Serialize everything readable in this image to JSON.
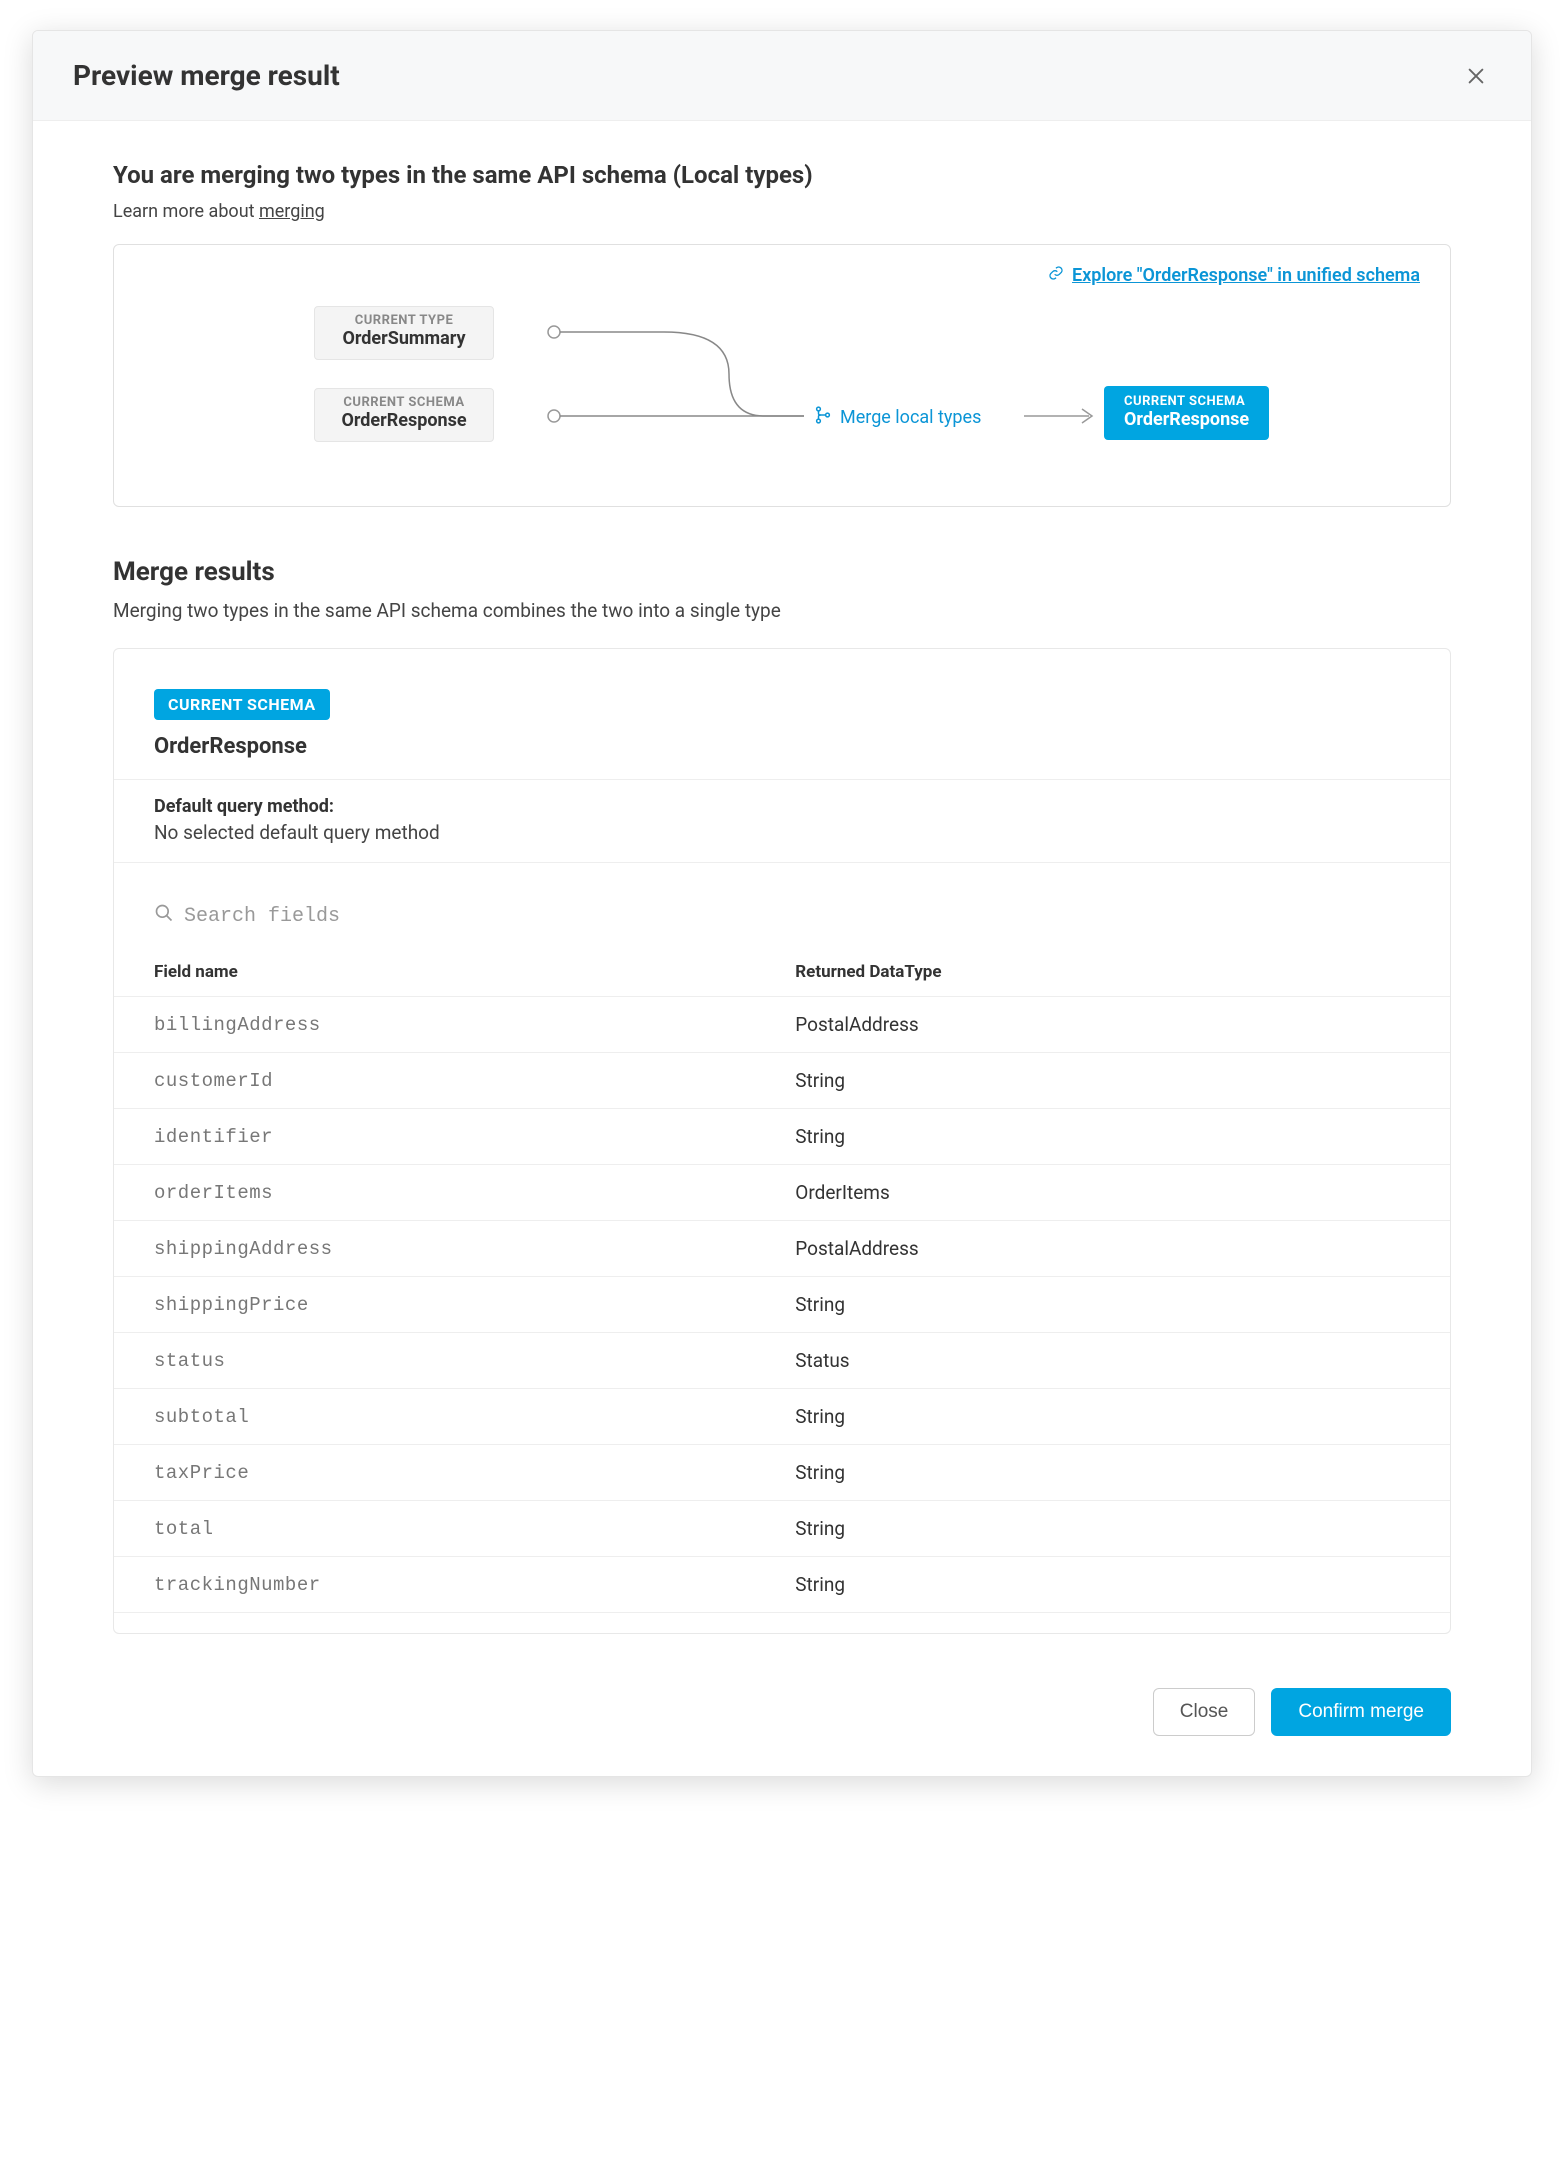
{
  "colors": {
    "accent": "#00a5e1",
    "link": "#0b95d6",
    "text": "#333333",
    "muted": "#888888",
    "border": "#e5e5e5",
    "background": "#ffffff",
    "header_bg": "#f7f8f9"
  },
  "modal": {
    "title": "Preview merge result",
    "close_label": "Close dialog"
  },
  "intro": {
    "heading": "You are merging two types in the same API schema (Local types)",
    "learn_prefix": "Learn more about ",
    "learn_link_text": "merging"
  },
  "diagram": {
    "explore_link": "Explore \"OrderResponse\" in unified schema",
    "source1": {
      "label": "CURRENT TYPE",
      "value": "OrderSummary"
    },
    "source2": {
      "label": "CURRENT SCHEMA",
      "value": "OrderResponse"
    },
    "merge_label": "Merge local types",
    "dest": {
      "label": "CURRENT SCHEMA",
      "value": "OrderResponse"
    }
  },
  "results": {
    "heading": "Merge results",
    "description": "Merging two types in the same API schema combines the two into a single type",
    "schema_badge": "CURRENT SCHEMA",
    "schema_name": "OrderResponse",
    "query_method_label": "Default query method:",
    "query_method_value": "No selected default query method",
    "search_placeholder": "Search fields",
    "columns": {
      "name": "Field name",
      "type": "Returned DataType"
    },
    "fields": [
      {
        "name": "billingAddress",
        "type": "PostalAddress"
      },
      {
        "name": "customerId",
        "type": "String"
      },
      {
        "name": "identifier",
        "type": "String"
      },
      {
        "name": "orderItems",
        "type": "OrderItems"
      },
      {
        "name": "shippingAddress",
        "type": "PostalAddress"
      },
      {
        "name": "shippingPrice",
        "type": "String"
      },
      {
        "name": "status",
        "type": "Status"
      },
      {
        "name": "subtotal",
        "type": "String"
      },
      {
        "name": "taxPrice",
        "type": "String"
      },
      {
        "name": "total",
        "type": "String"
      },
      {
        "name": "trackingNumber",
        "type": "String"
      }
    ]
  },
  "footer": {
    "close": "Close",
    "confirm": "Confirm merge"
  }
}
